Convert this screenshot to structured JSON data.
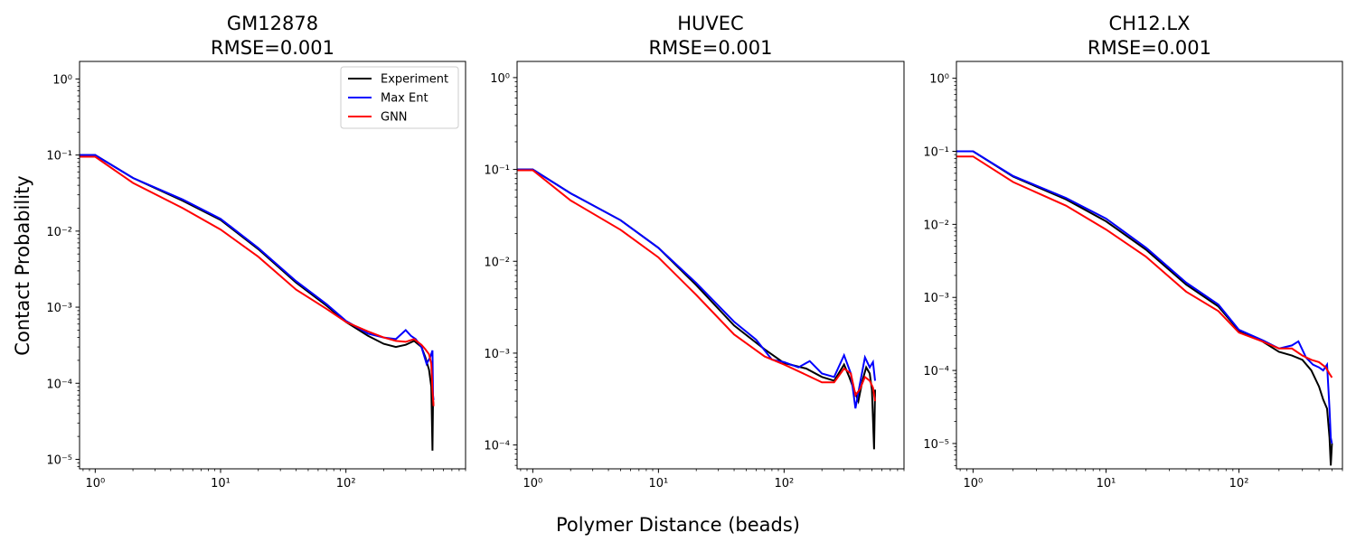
{
  "figure": {
    "xlabel": "Polymer Distance (beads)",
    "ylabel": "Contact Probability",
    "legend_placement": "top-right (first panel)",
    "legend": [
      {
        "name": "Experiment",
        "color": "#000000"
      },
      {
        "name": "Max Ent",
        "color": "#0000ff"
      },
      {
        "name": "GNN",
        "color": "#ff0000"
      }
    ]
  },
  "chart_data": [
    {
      "type": "line",
      "title_line1": "GM12878",
      "title_line2": "RMSE=0.001",
      "xscale": "log",
      "yscale": "log",
      "xlim": [
        0.75,
        900
      ],
      "ylim": [
        7.5e-06,
        1.7
      ],
      "xticks": [
        {
          "v": 1,
          "label": "10⁰"
        },
        {
          "v": 10,
          "label": "10¹"
        },
        {
          "v": 100,
          "label": "10²"
        }
      ],
      "yticks": [
        {
          "v": 1e-05,
          "label": "10⁻⁵"
        },
        {
          "v": 0.0001,
          "label": "10⁻⁴"
        },
        {
          "v": 0.001,
          "label": "10⁻³"
        },
        {
          "v": 0.01,
          "label": "10⁻²"
        },
        {
          "v": 0.1,
          "label": "10⁻¹"
        },
        {
          "v": 1,
          "label": "10⁰"
        }
      ],
      "grid": false,
      "show_legend": true,
      "series": [
        {
          "name": "Experiment",
          "color": "#000000",
          "points": [
            [
              0.75,
              0.1
            ],
            [
              1,
              0.1
            ],
            [
              2,
              0.05
            ],
            [
              5,
              0.025
            ],
            [
              10,
              0.014
            ],
            [
              20,
              0.0058
            ],
            [
              40,
              0.0021
            ],
            [
              70,
              0.00105
            ],
            [
              100,
              0.00064
            ],
            [
              150,
              0.00042
            ],
            [
              200,
              0.00033
            ],
            [
              250,
              0.0003
            ],
            [
              300,
              0.00032
            ],
            [
              350,
              0.00036
            ],
            [
              400,
              0.0003
            ],
            [
              430,
              0.00022
            ],
            [
              460,
              0.00015
            ],
            [
              480,
              9e-05
            ],
            [
              490,
              1.3e-05
            ],
            [
              495,
              6e-05
            ],
            [
              500,
              5e-05
            ]
          ]
        },
        {
          "name": "Max Ent",
          "color": "#0000ff",
          "points": [
            [
              0.75,
              0.1
            ],
            [
              1,
              0.1
            ],
            [
              2,
              0.05
            ],
            [
              5,
              0.026
            ],
            [
              10,
              0.0145
            ],
            [
              20,
              0.006
            ],
            [
              40,
              0.0022
            ],
            [
              70,
              0.0011
            ],
            [
              100,
              0.00066
            ],
            [
              150,
              0.00045
            ],
            [
              200,
              0.0004
            ],
            [
              250,
              0.00038
            ],
            [
              300,
              0.0005
            ],
            [
              330,
              0.00042
            ],
            [
              360,
              0.00038
            ],
            [
              400,
              0.0003
            ],
            [
              440,
              0.00018
            ],
            [
              470,
              0.00022
            ],
            [
              490,
              0.00027
            ],
            [
              495,
              7e-05
            ],
            [
              500,
              6e-05
            ]
          ]
        },
        {
          "name": "GNN",
          "color": "#ff0000",
          "points": [
            [
              0.75,
              0.095
            ],
            [
              1,
              0.095
            ],
            [
              2,
              0.043
            ],
            [
              5,
              0.02
            ],
            [
              10,
              0.0105
            ],
            [
              20,
              0.0046
            ],
            [
              40,
              0.0017
            ],
            [
              70,
              0.00095
            ],
            [
              100,
              0.00064
            ],
            [
              150,
              0.00048
            ],
            [
              200,
              0.0004
            ],
            [
              250,
              0.00036
            ],
            [
              300,
              0.00035
            ],
            [
              350,
              0.00038
            ],
            [
              400,
              0.00032
            ],
            [
              430,
              0.00028
            ],
            [
              460,
              0.00024
            ],
            [
              480,
              0.00018
            ],
            [
              490,
              8e-05
            ],
            [
              500,
              5e-05
            ]
          ]
        }
      ]
    },
    {
      "type": "line",
      "title_line1": "HUVEC",
      "title_line2": "RMSE=0.001",
      "xscale": "log",
      "yscale": "log",
      "xlim": [
        0.75,
        900
      ],
      "ylim": [
        5.5e-05,
        1.5
      ],
      "xticks": [
        {
          "v": 1,
          "label": "10⁰"
        },
        {
          "v": 10,
          "label": "10¹"
        },
        {
          "v": 100,
          "label": "10²"
        }
      ],
      "yticks": [
        {
          "v": 0.0001,
          "label": "10⁻⁴"
        },
        {
          "v": 0.001,
          "label": "10⁻³"
        },
        {
          "v": 0.01,
          "label": "10⁻²"
        },
        {
          "v": 0.1,
          "label": "10⁻¹"
        },
        {
          "v": 1,
          "label": "10⁰"
        }
      ],
      "grid": false,
      "show_legend": false,
      "series": [
        {
          "name": "Experiment",
          "color": "#000000",
          "points": [
            [
              0.75,
              0.1
            ],
            [
              1,
              0.1
            ],
            [
              2,
              0.055
            ],
            [
              5,
              0.028
            ],
            [
              10,
              0.014
            ],
            [
              20,
              0.0055
            ],
            [
              40,
              0.002
            ],
            [
              70,
              0.0011
            ],
            [
              100,
              0.00078
            ],
            [
              150,
              0.00068
            ],
            [
              200,
              0.00055
            ],
            [
              250,
              0.0005
            ],
            [
              300,
              0.00075
            ],
            [
              330,
              0.00055
            ],
            [
              360,
              0.0004
            ],
            [
              390,
              0.0003
            ],
            [
              420,
              0.0005
            ],
            [
              450,
              0.0007
            ],
            [
              480,
              0.0006
            ],
            [
              500,
              0.0004
            ],
            [
              520,
              9e-05
            ],
            [
              530,
              0.0004
            ]
          ]
        },
        {
          "name": "Max Ent",
          "color": "#0000ff",
          "points": [
            [
              0.75,
              0.1
            ],
            [
              1,
              0.1
            ],
            [
              2,
              0.055
            ],
            [
              5,
              0.028
            ],
            [
              10,
              0.014
            ],
            [
              20,
              0.0058
            ],
            [
              40,
              0.0022
            ],
            [
              60,
              0.0014
            ],
            [
              80,
              0.00085
            ],
            [
              100,
              0.0008
            ],
            [
              130,
              0.0007
            ],
            [
              160,
              0.00082
            ],
            [
              200,
              0.0006
            ],
            [
              250,
              0.00055
            ],
            [
              300,
              0.00095
            ],
            [
              340,
              0.0006
            ],
            [
              370,
              0.00025
            ],
            [
              400,
              0.00045
            ],
            [
              440,
              0.0009
            ],
            [
              480,
              0.0007
            ],
            [
              510,
              0.0008
            ],
            [
              530,
              0.0005
            ]
          ]
        },
        {
          "name": "GNN",
          "color": "#ff0000",
          "points": [
            [
              0.75,
              0.098
            ],
            [
              1,
              0.098
            ],
            [
              2,
              0.046
            ],
            [
              5,
              0.022
            ],
            [
              10,
              0.011
            ],
            [
              20,
              0.0043
            ],
            [
              40,
              0.0016
            ],
            [
              70,
              0.00092
            ],
            [
              100,
              0.00075
            ],
            [
              150,
              0.00058
            ],
            [
              200,
              0.00048
            ],
            [
              250,
              0.00048
            ],
            [
              300,
              0.00068
            ],
            [
              340,
              0.0006
            ],
            [
              370,
              0.00035
            ],
            [
              400,
              0.0004
            ],
            [
              440,
              0.00055
            ],
            [
              480,
              0.0005
            ],
            [
              510,
              0.00042
            ],
            [
              530,
              0.0003
            ]
          ]
        }
      ]
    },
    {
      "type": "line",
      "title_line1": "CH12.LX",
      "title_line2": "RMSE=0.001",
      "xscale": "log",
      "yscale": "log",
      "xlim": [
        0.75,
        600
      ],
      "ylim": [
        4.5e-06,
        1.7
      ],
      "xticks": [
        {
          "v": 1,
          "label": "10⁰"
        },
        {
          "v": 10,
          "label": "10¹"
        },
        {
          "v": 100,
          "label": "10²"
        }
      ],
      "yticks": [
        {
          "v": 1e-05,
          "label": "10⁻⁵"
        },
        {
          "v": 0.0001,
          "label": "10⁻⁴"
        },
        {
          "v": 0.001,
          "label": "10⁻³"
        },
        {
          "v": 0.01,
          "label": "10⁻²"
        },
        {
          "v": 0.1,
          "label": "10⁻¹"
        },
        {
          "v": 1,
          "label": "10⁰"
        }
      ],
      "grid": false,
      "show_legend": false,
      "series": [
        {
          "name": "Experiment",
          "color": "#000000",
          "points": [
            [
              0.75,
              0.1
            ],
            [
              1,
              0.1
            ],
            [
              2,
              0.045
            ],
            [
              5,
              0.022
            ],
            [
              10,
              0.011
            ],
            [
              20,
              0.0045
            ],
            [
              40,
              0.0015
            ],
            [
              70,
              0.00075
            ],
            [
              100,
              0.00035
            ],
            [
              150,
              0.00025
            ],
            [
              200,
              0.00018
            ],
            [
              250,
              0.00016
            ],
            [
              300,
              0.00014
            ],
            [
              350,
              0.0001
            ],
            [
              400,
              6e-05
            ],
            [
              430,
              4e-05
            ],
            [
              460,
              3e-05
            ],
            [
              480,
              1.2e-05
            ],
            [
              490,
              5e-06
            ],
            [
              500,
              1e-05
            ]
          ]
        },
        {
          "name": "Max Ent",
          "color": "#0000ff",
          "points": [
            [
              0.75,
              0.1
            ],
            [
              1,
              0.1
            ],
            [
              2,
              0.046
            ],
            [
              5,
              0.023
            ],
            [
              10,
              0.012
            ],
            [
              20,
              0.0048
            ],
            [
              40,
              0.0016
            ],
            [
              70,
              0.0008
            ],
            [
              100,
              0.00036
            ],
            [
              150,
              0.00026
            ],
            [
              200,
              0.0002
            ],
            [
              250,
              0.00022
            ],
            [
              280,
              0.00025
            ],
            [
              320,
              0.00015
            ],
            [
              360,
              0.00012
            ],
            [
              400,
              0.00011
            ],
            [
              430,
              0.0001
            ],
            [
              460,
              0.00012
            ],
            [
              480,
              3e-05
            ],
            [
              490,
              1.2e-05
            ],
            [
              500,
              1e-05
            ]
          ]
        },
        {
          "name": "GNN",
          "color": "#ff0000",
          "points": [
            [
              0.75,
              0.085
            ],
            [
              1,
              0.085
            ],
            [
              2,
              0.038
            ],
            [
              5,
              0.018
            ],
            [
              10,
              0.0085
            ],
            [
              20,
              0.0036
            ],
            [
              40,
              0.0012
            ],
            [
              70,
              0.00065
            ],
            [
              100,
              0.00033
            ],
            [
              150,
              0.00025
            ],
            [
              200,
              0.0002
            ],
            [
              250,
              0.0002
            ],
            [
              300,
              0.00016
            ],
            [
              350,
              0.00014
            ],
            [
              400,
              0.00013
            ],
            [
              450,
              0.00011
            ],
            [
              480,
              9e-05
            ],
            [
              500,
              8e-05
            ]
          ]
        }
      ]
    }
  ]
}
